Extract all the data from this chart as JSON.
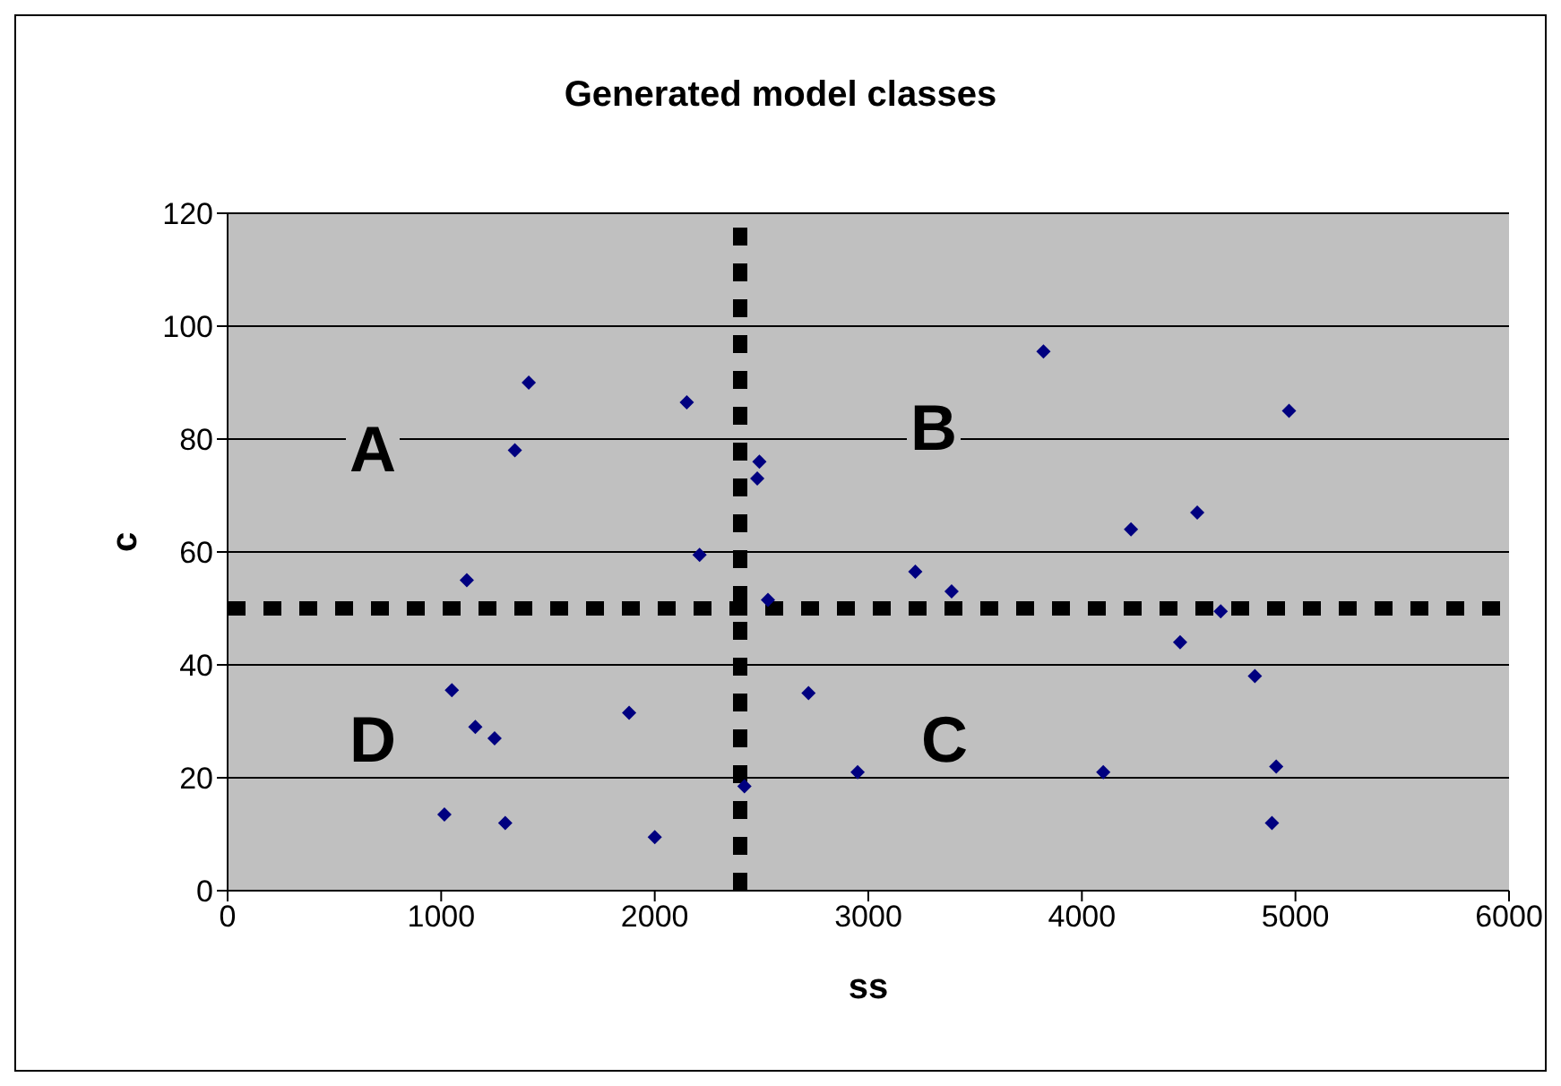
{
  "chart_data": {
    "type": "scatter",
    "title": "Generated model classes",
    "xlabel": "ss",
    "ylabel": "c",
    "x": [
      1015,
      1050,
      1120,
      1160,
      1250,
      1300,
      1345,
      1410,
      1880,
      2000,
      2150,
      2210,
      2420,
      2480,
      2490,
      2530,
      2720,
      2950,
      3220,
      3390,
      3820,
      4100,
      4230,
      4460,
      4540,
      4650,
      4810,
      4890,
      4910,
      4970
    ],
    "values": [
      13.5,
      35.5,
      55,
      29,
      27,
      12,
      78,
      90,
      31.5,
      9.5,
      86.5,
      59.5,
      18.5,
      73,
      76,
      51.5,
      35,
      21,
      56.5,
      53,
      95.5,
      21,
      64,
      44,
      67,
      49.5,
      38,
      12,
      22,
      85
    ],
    "color": "#000080",
    "marker": "diamond",
    "grid": "y",
    "legend": false,
    "xlim": [
      0,
      6000
    ],
    "xticks": [
      0,
      1000,
      2000,
      3000,
      4000,
      5000,
      6000
    ],
    "ylim": [
      0,
      120
    ],
    "yticks": [
      0,
      20,
      40,
      60,
      80,
      100,
      120
    ],
    "ref_lines": [
      {
        "axis": "x",
        "value": 2400,
        "color": "#000000",
        "line_style": "dotted"
      },
      {
        "axis": "y",
        "value": 50,
        "color": "#000000",
        "line_style": "dotted"
      }
    ],
    "annotations": [
      "A",
      "B",
      "C",
      "D"
    ]
  }
}
